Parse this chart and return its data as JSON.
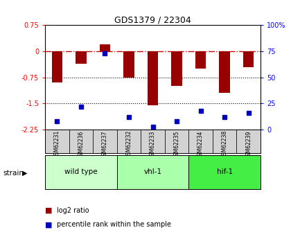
{
  "title": "GDS1379 / 22304",
  "samples": [
    "GSM62231",
    "GSM62236",
    "GSM62237",
    "GSM62232",
    "GSM62233",
    "GSM62235",
    "GSM62234",
    "GSM62238",
    "GSM62239"
  ],
  "log2_ratio": [
    -0.9,
    -0.35,
    0.2,
    -0.75,
    -1.55,
    -1.0,
    -0.5,
    -1.2,
    -0.45
  ],
  "percentile_rank": [
    8,
    22,
    73,
    12,
    3,
    8,
    18,
    12,
    16
  ],
  "groups": [
    {
      "label": "wild type",
      "start": 0,
      "end": 3,
      "color": "#ccffcc"
    },
    {
      "label": "vhl-1",
      "start": 3,
      "end": 6,
      "color": "#aaffaa"
    },
    {
      "label": "hif-1",
      "start": 6,
      "end": 9,
      "color": "#44ee44"
    }
  ],
  "ylim_left": [
    -2.25,
    0.75
  ],
  "ylim_right": [
    0,
    100
  ],
  "bar_color": "#990000",
  "dot_color": "#0000bb",
  "hline_color": "#cc0000",
  "bg_color": "#ffffff",
  "plot_bg": "#ffffff",
  "right_yticks": [
    0,
    25,
    50,
    75,
    100
  ],
  "right_yticklabels": [
    "0",
    "25",
    "50",
    "75",
    "100%"
  ],
  "left_yticks": [
    -2.25,
    -1.5,
    -0.75,
    0.0,
    0.75
  ],
  "left_yticklabels": [
    "-2.25",
    "-1.5",
    "-0.75",
    "0",
    "0.75"
  ],
  "bar_width": 0.45,
  "dot_size": 5,
  "group_colors": [
    "#ccffcc",
    "#aaffaa",
    "#44ee44"
  ]
}
